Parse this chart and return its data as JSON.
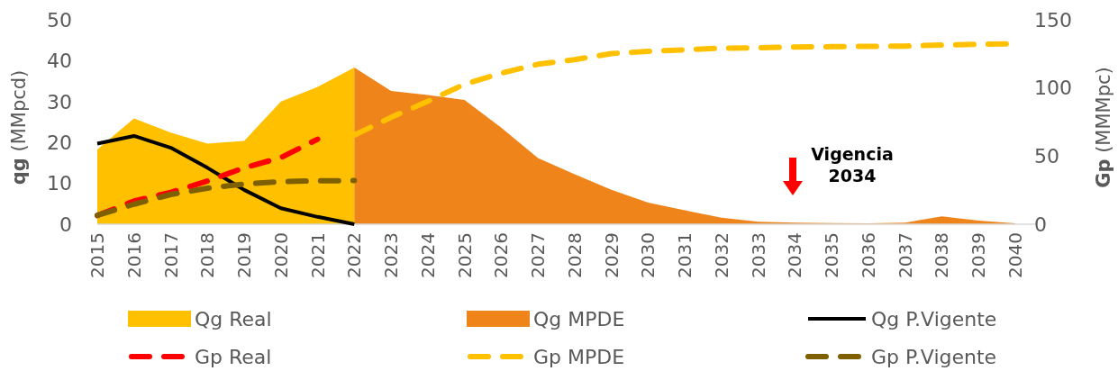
{
  "chart_data": {
    "type": "area",
    "ylabel": "qg (MMpcd)",
    "y2label": "Gp (MMMpc)",
    "categories": [
      "2015",
      "2016",
      "2017",
      "2018",
      "2019",
      "2020",
      "2021",
      "2022",
      "2023",
      "2024",
      "2025",
      "2026",
      "2027",
      "2028",
      "2029",
      "2030",
      "2031",
      "2032",
      "2033",
      "2034",
      "2035",
      "2036",
      "2037",
      "2038",
      "2039",
      "2040"
    ],
    "ylim": [
      0,
      50
    ],
    "yticks": [
      0,
      10,
      20,
      30,
      40,
      50
    ],
    "y2lim": [
      0,
      150
    ],
    "y2ticks": [
      0,
      50,
      100,
      150
    ],
    "grid": false,
    "legend": "bottom",
    "annotations": [
      "Vigencia 2034"
    ],
    "series": [
      {
        "name": "Qg Real",
        "color": "#ffc000",
        "values": [
          18.3,
          25.9,
          22.4,
          19.7,
          20.4,
          30.0,
          33.6,
          38.3,
          null,
          null,
          null,
          null,
          null,
          null,
          null,
          null,
          null,
          null,
          null,
          null,
          null,
          null,
          null,
          null,
          null,
          null
        ]
      },
      {
        "name": "Qg MPDE",
        "color": "#ef841a",
        "values": [
          null,
          null,
          null,
          null,
          null,
          null,
          null,
          38.3,
          32.6,
          31.6,
          30.4,
          23.6,
          16.2,
          12.2,
          8.4,
          5.3,
          3.4,
          1.6,
          0.6,
          0.4,
          0.3,
          0.2,
          0.4,
          1.9,
          0.9,
          0.2
        ]
      },
      {
        "name": "Qg P.Vigente",
        "type": "line",
        "color": "#000000",
        "line_style": "solid",
        "values": [
          19.7,
          21.6,
          18.7,
          13.8,
          8.4,
          3.9,
          1.8,
          0,
          null,
          null,
          null,
          null,
          null,
          null,
          null,
          null,
          null,
          null,
          null,
          null,
          null,
          null,
          null,
          null,
          null,
          null
        ]
      },
      {
        "name": "Gp Real",
        "type": "line",
        "color": "#ff0000",
        "line_style": "dashed",
        "axis": "y2",
        "values": [
          6.4,
          17,
          23.4,
          31.7,
          41.4,
          48.9,
          62.4,
          null,
          null,
          null,
          null,
          null,
          null,
          null,
          null,
          null,
          null,
          null,
          null,
          null,
          null,
          null,
          null,
          null,
          null,
          null
        ]
      },
      {
        "name": "Gp MPDE",
        "type": "line",
        "color": "#ffc000",
        "line_style": "dashed",
        "axis": "y2",
        "values": [
          null,
          null,
          null,
          null,
          null,
          null,
          null,
          65.4,
          78.4,
          90.2,
          102.7,
          110.8,
          117.4,
          120.8,
          125.2,
          126.9,
          128,
          129.2,
          129.5,
          130,
          130.3,
          130.5,
          130.7,
          131.5,
          132,
          132.5
        ]
      },
      {
        "name": "Gp P.Vigente",
        "type": "line",
        "color": "#7f6000",
        "line_style": "dashed",
        "axis": "y2",
        "values": [
          6.5,
          14.7,
          21.8,
          26.4,
          29.5,
          31.2,
          31.9,
          32,
          null,
          null,
          null,
          null,
          null,
          null,
          null,
          null,
          null,
          null,
          null,
          null,
          null,
          null,
          null,
          null,
          null,
          null
        ]
      }
    ]
  }
}
